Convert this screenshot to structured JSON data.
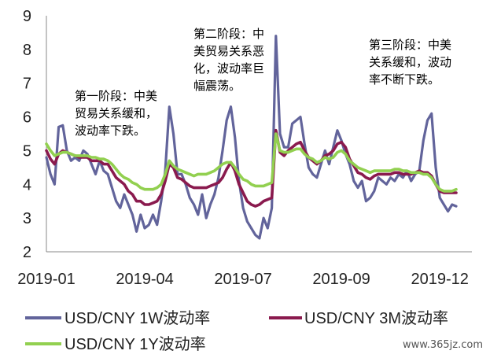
{
  "chart_data": {
    "type": "line",
    "title": "",
    "xlabel": "",
    "ylabel": "",
    "ylim": [
      2,
      9
    ],
    "yticks": [
      "2",
      "3",
      "4",
      "5",
      "6",
      "7",
      "8",
      "9"
    ],
    "x_tick_labels": [
      "2019-01",
      "2019-04",
      "2019-07",
      "2019-09",
      "2019-12"
    ],
    "x_ticks_at_index": [
      0,
      24,
      48,
      72,
      96
    ],
    "grid": false,
    "legend_position": "bottom",
    "series": [
      {
        "name": "USD/CNY 1W波动率",
        "color": "#62649b",
        "values": [
          4.8,
          4.3,
          4.0,
          5.7,
          5.75,
          5.0,
          4.7,
          4.8,
          4.7,
          5.0,
          4.9,
          4.6,
          4.3,
          4.7,
          4.4,
          4.3,
          3.9,
          3.5,
          3.3,
          3.7,
          3.4,
          3.1,
          2.6,
          3.1,
          2.7,
          2.8,
          3.1,
          2.8,
          3.5,
          4.4,
          6.3,
          5.5,
          4.3,
          4.3,
          4.0,
          3.6,
          3.4,
          3.1,
          3.7,
          3.0,
          3.4,
          3.7,
          4.2,
          5.0,
          5.9,
          6.3,
          5.4,
          4.1,
          3.3,
          2.9,
          2.7,
          2.5,
          2.4,
          3.0,
          2.7,
          3.3,
          8.4,
          5.5,
          5.1,
          5.1,
          5.8,
          5.9,
          6.0,
          5.2,
          4.5,
          4.3,
          4.2,
          4.6,
          5.0,
          4.6,
          5.1,
          5.6,
          5.3,
          4.9,
          4.6,
          4.1,
          3.9,
          4.1,
          3.5,
          3.6,
          3.8,
          4.2,
          4.1,
          4.0,
          4.2,
          4.1,
          4.3,
          4.2,
          4.4,
          4.1,
          4.3,
          4.4,
          5.3,
          5.9,
          6.1,
          4.5,
          3.6,
          3.4,
          3.2,
          3.4,
          3.35
        ],
        "ylim": [
          2,
          9
        ]
      },
      {
        "name": "USD/CNY 3M波动率",
        "color": "#8a1a4e",
        "values": [
          5.0,
          4.75,
          4.6,
          4.9,
          5.0,
          4.95,
          4.9,
          4.85,
          4.8,
          4.8,
          4.8,
          4.7,
          4.7,
          4.7,
          4.6,
          4.6,
          4.4,
          4.2,
          4.1,
          4.0,
          3.8,
          3.7,
          3.5,
          3.5,
          3.4,
          3.4,
          3.45,
          3.5,
          3.7,
          4.1,
          4.6,
          4.5,
          4.2,
          4.15,
          4.05,
          3.95,
          3.9,
          3.9,
          3.9,
          3.9,
          3.95,
          4.0,
          4.05,
          4.2,
          4.45,
          4.65,
          4.4,
          4.0,
          3.75,
          3.5,
          3.4,
          3.35,
          3.4,
          3.5,
          3.55,
          3.6,
          5.6,
          4.95,
          4.85,
          5.0,
          5.1,
          5.2,
          5.25,
          5.0,
          4.8,
          4.7,
          4.6,
          4.7,
          4.85,
          4.9,
          5.0,
          5.2,
          5.25,
          5.1,
          4.75,
          4.55,
          4.35,
          4.3,
          4.2,
          4.15,
          4.25,
          4.3,
          4.3,
          4.3,
          4.3,
          4.35,
          4.35,
          4.3,
          4.3,
          4.3,
          4.35,
          4.4,
          4.35,
          4.35,
          4.25,
          4.0,
          3.8,
          3.75,
          3.75,
          3.75,
          3.75
        ],
        "ylim": [
          2,
          9
        ]
      },
      {
        "name": "USD/CNY 1Y波动率",
        "color": "#92d050",
        "values": [
          5.2,
          5.0,
          4.85,
          4.9,
          4.95,
          4.95,
          4.9,
          4.85,
          4.85,
          4.85,
          4.85,
          4.8,
          4.8,
          4.75,
          4.75,
          4.7,
          4.6,
          4.45,
          4.3,
          4.2,
          4.15,
          4.05,
          4.0,
          3.9,
          3.85,
          3.85,
          3.85,
          3.9,
          4.0,
          4.3,
          4.7,
          4.55,
          4.45,
          4.4,
          4.35,
          4.3,
          4.25,
          4.3,
          4.3,
          4.3,
          4.35,
          4.4,
          4.5,
          4.6,
          4.65,
          4.65,
          4.5,
          4.3,
          4.15,
          4.1,
          4.0,
          3.95,
          3.95,
          3.95,
          4.0,
          4.05,
          5.5,
          5.0,
          4.95,
          4.95,
          5.0,
          5.05,
          5.05,
          4.9,
          4.8,
          4.75,
          4.65,
          4.7,
          4.8,
          4.75,
          4.8,
          4.95,
          5.0,
          4.9,
          4.7,
          4.6,
          4.5,
          4.45,
          4.4,
          4.35,
          4.4,
          4.4,
          4.4,
          4.4,
          4.4,
          4.45,
          4.45,
          4.4,
          4.4,
          4.35,
          4.35,
          4.35,
          4.3,
          4.3,
          4.2,
          4.0,
          3.85,
          3.8,
          3.8,
          3.8,
          3.85
        ],
        "ylim": [
          2,
          9
        ]
      }
    ],
    "annotations": [
      {
        "lines": [
          "第一阶段：中美",
          "贸易关系缓和，",
          "波动率下跌。"
        ]
      },
      {
        "lines": [
          "第二阶段：中",
          "美贸易关系恶",
          "化，波动率巨",
          "幅震荡。"
        ]
      },
      {
        "lines": [
          "第三阶段：中美",
          "关系缓和，波动",
          "率不断下跌。"
        ]
      }
    ],
    "watermark": "www.365jz.com"
  }
}
